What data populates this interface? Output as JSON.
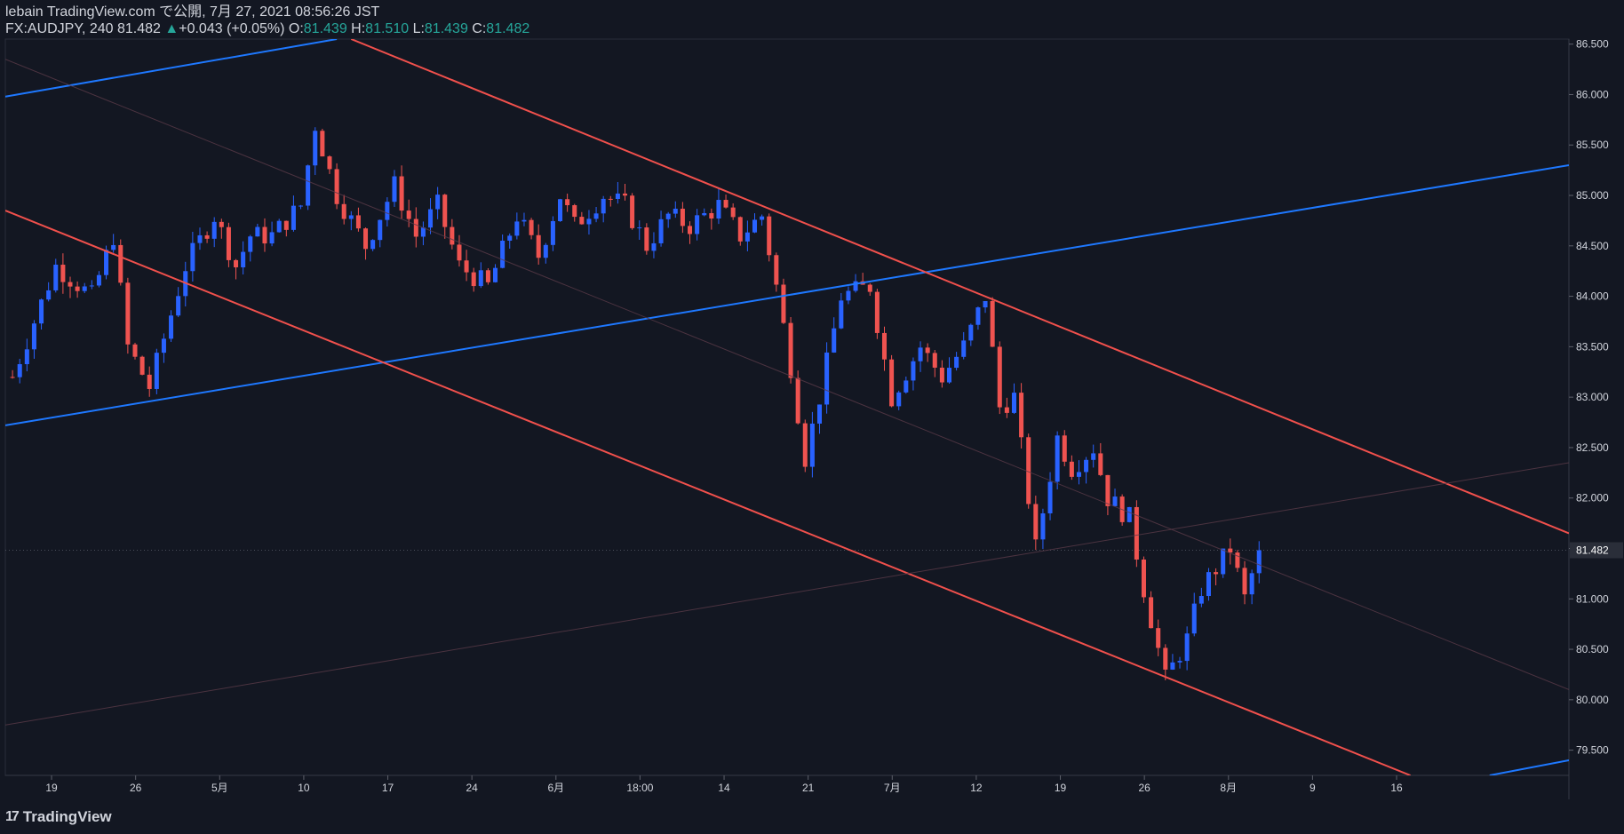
{
  "header": {
    "publish_line": "lebain TradingView.com で公開, 7月 27, 2021 08:56:26 JST",
    "symbol": "FX:AUDJPY, 240",
    "last_price": "81.482",
    "change": "+0.043 (+0.05%)",
    "o_label": "O:",
    "o_value": "81.439",
    "h_label": "H:",
    "h_value": "81.510",
    "l_label": "L:",
    "l_value": "81.439",
    "c_label": "C:",
    "c_value": "81.482"
  },
  "logo": {
    "text": "TradingView",
    "icon": "tradingview-logo-icon"
  },
  "colors": {
    "background": "#131722",
    "up": "#2962ff",
    "down": "#ef5350",
    "trend_blue": "#1e78ff",
    "trend_red": "#f0504c",
    "axis_text": "#d1d4dc",
    "price_label_bg": "#2a2e39"
  },
  "chart_data": {
    "type": "candlestick",
    "title": "",
    "symbol": "FX:AUDJPY",
    "interval": "240",
    "y_axis": {
      "range": [
        79.25,
        86.55
      ],
      "ticks": [
        "86.500",
        "86.000",
        "85.500",
        "85.000",
        "84.500",
        "84.000",
        "83.500",
        "83.000",
        "82.500",
        "82.000",
        "81.500",
        "81.000",
        "80.500",
        "80.000",
        "79.500"
      ],
      "current_price_label": "81.482",
      "current_price": 81.482
    },
    "x_axis": {
      "ticks": [
        "19",
        "26",
        "5月",
        "10",
        "17",
        "24",
        "6月",
        "18:00",
        "14",
        "21",
        "7月",
        "12",
        "19",
        "26",
        "8月",
        "9",
        "16"
      ]
    },
    "price_path": [
      [
        0,
        83.2
      ],
      [
        6,
        84.3
      ],
      [
        11,
        84.0
      ],
      [
        14,
        84.6
      ],
      [
        16,
        83.5
      ],
      [
        19,
        83.1
      ],
      [
        24,
        84.3
      ],
      [
        28,
        84.8
      ],
      [
        31,
        84.3
      ],
      [
        33,
        84.6
      ],
      [
        36,
        84.6
      ],
      [
        40,
        84.9
      ],
      [
        42,
        85.7
      ],
      [
        45,
        85.0
      ],
      [
        49,
        84.5
      ],
      [
        53,
        85.1
      ],
      [
        56,
        84.6
      ],
      [
        59,
        84.9
      ],
      [
        62,
        84.3
      ],
      [
        66,
        84.1
      ],
      [
        70,
        84.8
      ],
      [
        73,
        84.4
      ],
      [
        76,
        85.0
      ],
      [
        78,
        84.7
      ],
      [
        82,
        85.0
      ],
      [
        85,
        84.9
      ],
      [
        88,
        84.5
      ],
      [
        91,
        84.8
      ],
      [
        94,
        84.7
      ],
      [
        98,
        84.9
      ],
      [
        101,
        84.6
      ],
      [
        104,
        84.8
      ],
      [
        106,
        84.1
      ],
      [
        108,
        83.3
      ],
      [
        110,
        82.4
      ],
      [
        112,
        83.0
      ],
      [
        115,
        84.0
      ],
      [
        119,
        84.1
      ],
      [
        122,
        83.0
      ],
      [
        126,
        83.5
      ],
      [
        129,
        83.2
      ],
      [
        132,
        83.5
      ],
      [
        135,
        84.0
      ],
      [
        137,
        82.9
      ],
      [
        139,
        83.0
      ],
      [
        142,
        81.5
      ],
      [
        145,
        82.6
      ],
      [
        147,
        82.3
      ],
      [
        150,
        82.5
      ],
      [
        152,
        82.0
      ],
      [
        155,
        81.8
      ],
      [
        157,
        81.1
      ],
      [
        160,
        80.2
      ],
      [
        163,
        80.6
      ],
      [
        165,
        81.1
      ],
      [
        169,
        81.5
      ],
      [
        171,
        81.0
      ],
      [
        173,
        81.482
      ]
    ],
    "price_path_note": "",
    "trend_lines": [
      {
        "color": "blue",
        "from": [
          -1,
          85.98
        ],
        "to": [
          45,
          86.55
        ]
      },
      {
        "color": "blue",
        "from": [
          -1,
          82.72
        ],
        "to": [
          216,
          85.3
        ]
      },
      {
        "color": "blue",
        "from": [
          205,
          79.25
        ],
        "to": [
          216,
          79.4
        ]
      },
      {
        "color": "red",
        "from": [
          -1,
          84.85
        ],
        "to": [
          194,
          79.25
        ]
      },
      {
        "color": "red",
        "from": [
          47,
          86.55
        ],
        "to": [
          216,
          81.65
        ]
      },
      {
        "color": "faint",
        "from": [
          -1,
          86.35
        ],
        "to": [
          216,
          80.1
        ]
      },
      {
        "color": "faint",
        "from": [
          -1,
          79.75
        ],
        "to": [
          216,
          82.35
        ]
      }
    ],
    "grid": false,
    "legend": "none"
  }
}
